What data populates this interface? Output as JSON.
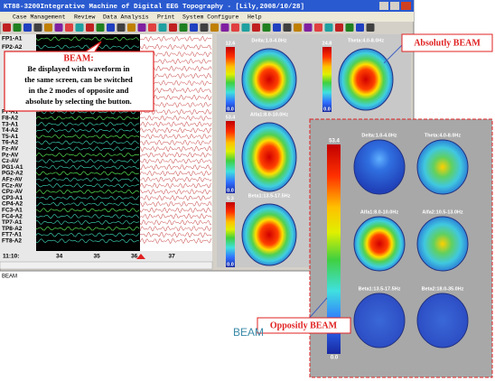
{
  "window": {
    "title": "KT88-3200Integrative Machine of Digital EEG Topography - [Lily,2008/10/28]",
    "menu": [
      "Case Management",
      "Review",
      "Data Analysis",
      "Print",
      "System Configure",
      "Help"
    ],
    "status": "BEAM"
  },
  "channels_top": [
    "FP1-A1",
    "FP2-A2"
  ],
  "channels": [
    "F7-A1",
    "F8-A2",
    "T3-A1",
    "T4-A2",
    "T5-A1",
    "T6-A2",
    "Fz-AV",
    "Pz-AV",
    "Cz-AV",
    "PG1-A1",
    "PG2-A2",
    "AFz-AV",
    "FCz-AV",
    "CPz-AV",
    "CP3-A1",
    "CP4-A2",
    "FC3-A1",
    "FC4-A2",
    "TP7-A1",
    "TP8-A2",
    "FT7-A1",
    "FT8-A2"
  ],
  "time_axis": {
    "start": "11:10:",
    "ticks": [
      "34",
      "35",
      "36",
      "37"
    ]
  },
  "callout": {
    "title": "BEAM:",
    "lines": [
      "Be displayed with waveform in",
      "the same screen, can be switched",
      "in the 2 modes of opposite and",
      "absolute by selecting the button."
    ]
  },
  "absolute": {
    "label": "Absolutly BEAM",
    "maps": [
      {
        "label": "Delta:1.0-4.0Hz",
        "max": "12.6",
        "min": "0.0"
      },
      {
        "label": "Theta:4.0-8.0Hz",
        "max": "24.8",
        "min": "0.0"
      },
      {
        "label": "Alfa1:8.0-10.0Hz",
        "max": "53.4",
        "min": "0.0"
      },
      {
        "label": "Beta1:13.5-17.5Hz",
        "max": "5.3",
        "min": "0.0"
      }
    ]
  },
  "opposite": {
    "label": "Oppositly BEAM",
    "max": "53.4",
    "min": "0.0",
    "maps": [
      "Delta:1.0-4.0Hz",
      "Theta:4.0-8.0Hz",
      "Alfa1:8.0-10.0Hz",
      "Alfa2:10.5-13.0Hz",
      "Beta1:13.5-17.5Hz",
      "Beta2:18.0-35.0Hz"
    ]
  },
  "caption": "BEAM"
}
